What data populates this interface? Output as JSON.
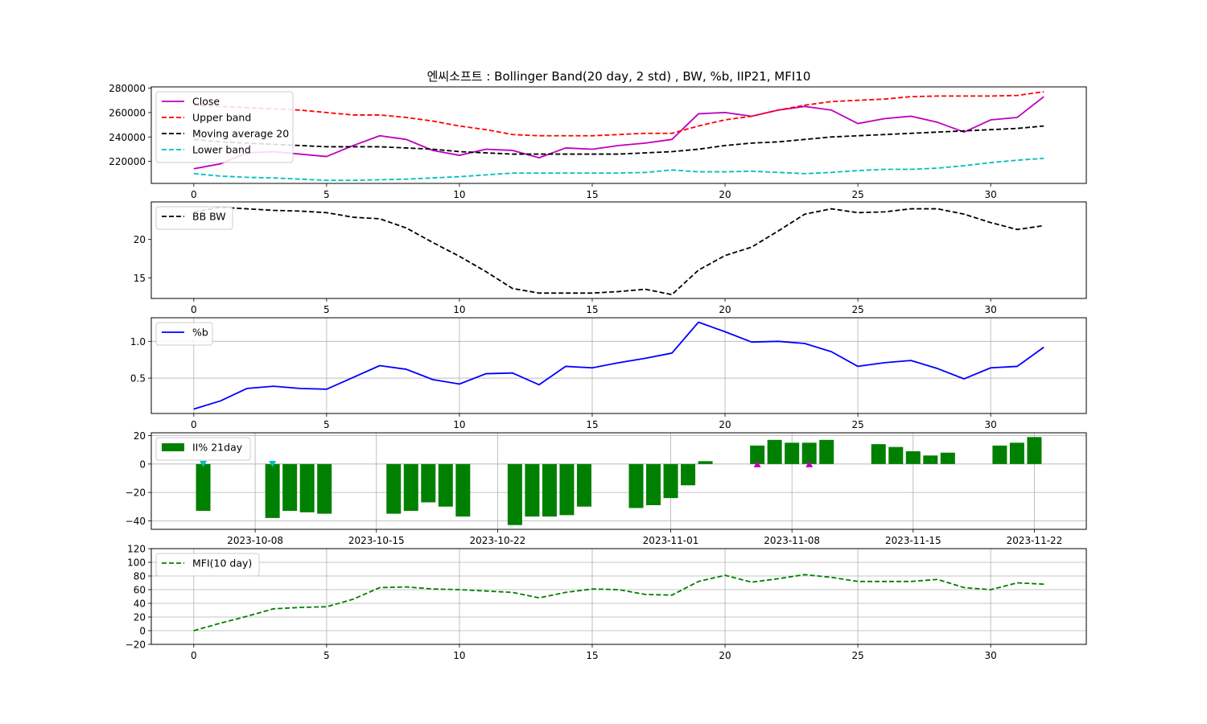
{
  "title": "엔씨소프트 : Bollinger Band(20 day, 2 std) , BW, %b, IIP21, MFI10",
  "colors": {
    "close": "#bf00bf",
    "upper": "#ff0000",
    "ma": "#000000",
    "lower": "#00bfbf",
    "bw": "#000000",
    "pb": "#0000ff",
    "iip": "#008000",
    "mfi": "#008000",
    "marker_down": "#00bfbf",
    "marker_up": "#bf00bf",
    "grid": "#b0b0b0"
  },
  "chart_data": [
    {
      "type": "line",
      "name": "bollinger",
      "x": [
        0,
        1,
        2,
        3,
        4,
        5,
        6,
        7,
        8,
        9,
        10,
        11,
        12,
        13,
        14,
        15,
        16,
        17,
        18,
        19,
        20,
        21,
        22,
        23,
        24,
        25,
        26,
        27,
        28,
        29,
        30,
        31,
        32
      ],
      "series": [
        {
          "name": "Close",
          "key": "close",
          "dashed": false,
          "values": [
            214000,
            218000,
            227000,
            228000,
            226000,
            224000,
            233000,
            241000,
            238000,
            229000,
            225000,
            230000,
            229000,
            223000,
            231000,
            230000,
            233000,
            235000,
            238000,
            259000,
            260000,
            257000,
            262000,
            265000,
            262000,
            251000,
            255000,
            257000,
            252000,
            244000,
            254000,
            256000,
            273000
          ]
        },
        {
          "name": "Upper band",
          "key": "upper",
          "dashed": true,
          "values": [
            266000,
            265000,
            264000,
            263000,
            262000,
            260000,
            258000,
            258000,
            256000,
            253000,
            249000,
            246000,
            242000,
            241000,
            241000,
            241000,
            242000,
            243000,
            243000,
            249000,
            254000,
            257000,
            262000,
            266000,
            269000,
            270000,
            271000,
            273000,
            273500,
            273500,
            273500,
            274000,
            277000
          ]
        },
        {
          "name": "Moving average 20",
          "key": "ma",
          "dashed": true,
          "values": [
            238000,
            236000,
            235000,
            234000,
            233000,
            232000,
            232000,
            232000,
            231000,
            230000,
            228000,
            227000,
            226000,
            226000,
            226000,
            226000,
            226000,
            227000,
            228000,
            230000,
            233000,
            235000,
            236000,
            238000,
            240000,
            241000,
            242000,
            243000,
            244000,
            245000,
            246000,
            247000,
            249000
          ]
        },
        {
          "name": "Lower band",
          "key": "lower",
          "dashed": true,
          "values": [
            210000,
            208000,
            207000,
            206500,
            205500,
            204500,
            204500,
            205000,
            205500,
            206500,
            207500,
            209000,
            210500,
            210500,
            210500,
            210500,
            210500,
            211000,
            213000,
            211500,
            211500,
            212000,
            211000,
            210000,
            211000,
            212500,
            213500,
            213500,
            214500,
            216500,
            219000,
            221000,
            222500
          ]
        }
      ],
      "xticks": [
        0,
        5,
        10,
        15,
        20,
        25,
        30
      ],
      "xlim": [
        -1.6,
        33.6
      ],
      "yticks": [
        220000,
        240000,
        260000,
        280000
      ],
      "ytick_labels": [
        "220000",
        "240000",
        "260000",
        "280000"
      ],
      "ylim": [
        202000,
        281000
      ],
      "grid": false,
      "legend": "upper-left"
    },
    {
      "type": "line",
      "name": "bandwidth",
      "x": [
        0,
        1,
        2,
        3,
        4,
        5,
        6,
        7,
        8,
        9,
        10,
        11,
        12,
        13,
        14,
        15,
        16,
        17,
        18,
        19,
        20,
        21,
        22,
        23,
        24,
        25,
        26,
        27,
        28,
        29,
        30,
        31,
        32
      ],
      "series": [
        {
          "name": "BB BW",
          "key": "bw",
          "dashed": true,
          "values": [
            23.6,
            24.2,
            24.0,
            23.8,
            23.7,
            23.5,
            22.9,
            22.7,
            21.5,
            19.6,
            17.8,
            15.8,
            13.6,
            13.0,
            13.0,
            13.0,
            13.2,
            13.5,
            12.8,
            16.0,
            17.9,
            19.0,
            21.1,
            23.3,
            24.0,
            23.5,
            23.6,
            24.0,
            24.0,
            23.3,
            22.2,
            21.3,
            21.8
          ]
        }
      ],
      "xticks": [
        0,
        5,
        10,
        15,
        20,
        25,
        30
      ],
      "xlim": [
        -1.6,
        33.6
      ],
      "yticks": [
        15,
        20
      ],
      "ytick_labels": [
        "15",
        "20"
      ],
      "ylim": [
        12.3,
        24.9
      ],
      "grid": false,
      "legend": "upper-left"
    },
    {
      "type": "line",
      "name": "percent_b",
      "x": [
        0,
        1,
        2,
        3,
        4,
        5,
        6,
        7,
        8,
        9,
        10,
        11,
        12,
        13,
        14,
        15,
        16,
        17,
        18,
        19,
        20,
        21,
        22,
        23,
        24,
        25,
        26,
        27,
        28,
        29,
        30,
        31,
        32
      ],
      "series": [
        {
          "name": "%b",
          "key": "pb",
          "dashed": false,
          "values": [
            0.08,
            0.19,
            0.36,
            0.39,
            0.36,
            0.35,
            0.51,
            0.67,
            0.62,
            0.48,
            0.42,
            0.56,
            0.57,
            0.41,
            0.66,
            0.64,
            0.71,
            0.77,
            0.84,
            1.26,
            1.13,
            0.99,
            1.0,
            0.97,
            0.86,
            0.66,
            0.71,
            0.74,
            0.63,
            0.49,
            0.64,
            0.66,
            0.92
          ]
        }
      ],
      "xticks": [
        0,
        5,
        10,
        15,
        20,
        25,
        30
      ],
      "xlim": [
        -1.6,
        33.6
      ],
      "yticks": [
        0.5,
        1.0
      ],
      "ytick_labels": [
        "0.5",
        "1.0"
      ],
      "ylim": [
        0.02,
        1.32
      ],
      "grid": true,
      "legend": "upper-left"
    },
    {
      "type": "bar",
      "name": "iip21",
      "x": [
        "2023-10-05",
        "2023-10-09",
        "2023-10-10",
        "2023-10-11",
        "2023-10-12",
        "2023-10-16",
        "2023-10-17",
        "2023-10-18",
        "2023-10-19",
        "2023-10-20",
        "2023-10-23",
        "2023-10-24",
        "2023-10-25",
        "2023-10-26",
        "2023-10-27",
        "2023-10-30",
        "2023-10-31",
        "2023-11-01",
        "2023-11-02",
        "2023-11-03",
        "2023-11-06",
        "2023-11-07",
        "2023-11-08",
        "2023-11-09",
        "2023-11-10",
        "2023-11-13",
        "2023-11-14",
        "2023-11-15",
        "2023-11-16",
        "2023-11-17",
        "2023-11-20",
        "2023-11-21",
        "2023-11-22"
      ],
      "series": [
        {
          "name": "II% 21day",
          "key": "iip",
          "values": [
            -33,
            -38,
            -33,
            -34,
            -35,
            -35,
            -33,
            -27,
            -30,
            -37,
            -43,
            -37,
            -37,
            -36,
            -30,
            -31,
            -29,
            -24,
            -15,
            2,
            13,
            17,
            15,
            15,
            17,
            14,
            12,
            9,
            6,
            8,
            13,
            15,
            19
          ]
        }
      ],
      "markers": [
        {
          "x": "2023-10-05",
          "y": 0,
          "shape": "triangle-down",
          "key": "marker_down"
        },
        {
          "x": "2023-10-09",
          "y": 0,
          "shape": "triangle-down",
          "key": "marker_down"
        },
        {
          "x": "2023-11-06",
          "y": 0,
          "shape": "triangle-up",
          "key": "marker_up"
        },
        {
          "x": "2023-11-09",
          "y": 0,
          "shape": "triangle-up",
          "key": "marker_up"
        }
      ],
      "xticks": [
        "2023-10-08",
        "2023-10-15",
        "2023-10-22",
        "2023-11-01",
        "2023-11-08",
        "2023-11-15",
        "2023-11-22"
      ],
      "xlim": [
        "2023-10-02",
        "2023-11-25"
      ],
      "yticks": [
        -40,
        -20,
        0,
        20
      ],
      "ytick_labels": [
        "−40",
        "−20",
        "0",
        "20"
      ],
      "ylim": [
        -46,
        22
      ],
      "grid": true,
      "legend": "upper-left"
    },
    {
      "type": "line",
      "name": "mfi10",
      "x": [
        0,
        1,
        2,
        3,
        4,
        5,
        6,
        7,
        8,
        9,
        10,
        11,
        12,
        13,
        14,
        15,
        16,
        17,
        18,
        19,
        20,
        21,
        22,
        23,
        24,
        25,
        26,
        27,
        28,
        29,
        30,
        31,
        32
      ],
      "series": [
        {
          "name": "MFI(10 day)",
          "key": "mfi",
          "dashed": true,
          "values": [
            0,
            11,
            21,
            32,
            34,
            35,
            46,
            63,
            64,
            61,
            60,
            58,
            56,
            48,
            56,
            61,
            60,
            53,
            52,
            72,
            81,
            71,
            76,
            82,
            78,
            72,
            72,
            72,
            75,
            63,
            60,
            70,
            68
          ]
        }
      ],
      "xticks": [
        0,
        5,
        10,
        15,
        20,
        25,
        30
      ],
      "xlim": [
        -1.6,
        33.6
      ],
      "yticks": [
        -20,
        0,
        20,
        40,
        60,
        80,
        100,
        120
      ],
      "ytick_labels": [
        "−20",
        "0",
        "20",
        "40",
        "60",
        "80",
        "100",
        "120"
      ],
      "ylim": [
        -20,
        120
      ],
      "grid": true,
      "legend": "upper-left"
    }
  ]
}
